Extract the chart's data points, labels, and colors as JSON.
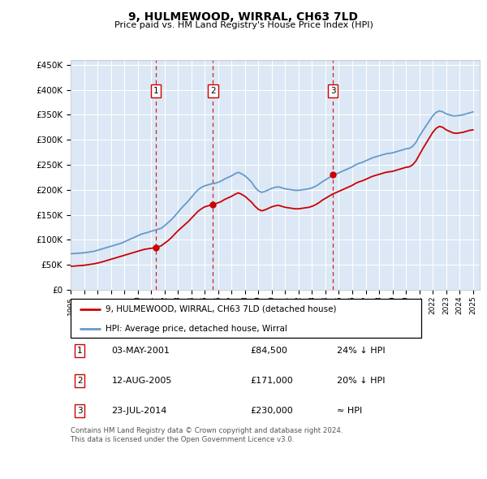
{
  "title": "9, HULMEWOOD, WIRRAL, CH63 7LD",
  "subtitle": "Price paid vs. HM Land Registry's House Price Index (HPI)",
  "footer": "Contains HM Land Registry data © Crown copyright and database right 2024.\nThis data is licensed under the Open Government Licence v3.0.",
  "legend_line1": "9, HULMEWOOD, WIRRAL, CH63 7LD (detached house)",
  "legend_line2": "HPI: Average price, detached house, Wirral",
  "table_rows": [
    {
      "num": "1",
      "date": "03-MAY-2001",
      "price": "£84,500",
      "hpi": "24% ↓ HPI"
    },
    {
      "num": "2",
      "date": "12-AUG-2005",
      "price": "£171,000",
      "hpi": "20% ↓ HPI"
    },
    {
      "num": "3",
      "date": "23-JUL-2014",
      "price": "£230,000",
      "hpi": "≈ HPI"
    }
  ],
  "sale_markers": [
    {
      "year": 2001.35,
      "value": 84500,
      "label": "1"
    },
    {
      "year": 2005.62,
      "value": 171000,
      "label": "2"
    },
    {
      "year": 2014.55,
      "value": 230000,
      "label": "3"
    }
  ],
  "red_color": "#cc0000",
  "blue_color": "#6699cc",
  "plot_bg": "#dce8f5",
  "ylim": [
    0,
    460000
  ],
  "yticks": [
    0,
    50000,
    100000,
    150000,
    200000,
    250000,
    300000,
    350000,
    400000,
    450000
  ],
  "ytick_labels": [
    "£0",
    "£50K",
    "£100K",
    "£150K",
    "£200K",
    "£250K",
    "£300K",
    "£350K",
    "£400K",
    "£450K"
  ],
  "hpi_data": {
    "years": [
      1995.0,
      1995.25,
      1995.5,
      1995.75,
      1996.0,
      1996.25,
      1996.5,
      1996.75,
      1997.0,
      1997.25,
      1997.5,
      1997.75,
      1998.0,
      1998.25,
      1998.5,
      1998.75,
      1999.0,
      1999.25,
      1999.5,
      1999.75,
      2000.0,
      2000.25,
      2000.5,
      2000.75,
      2001.0,
      2001.25,
      2001.5,
      2001.75,
      2002.0,
      2002.25,
      2002.5,
      2002.75,
      2003.0,
      2003.25,
      2003.5,
      2003.75,
      2004.0,
      2004.25,
      2004.5,
      2004.75,
      2005.0,
      2005.25,
      2005.5,
      2005.75,
      2006.0,
      2006.25,
      2006.5,
      2006.75,
      2007.0,
      2007.25,
      2007.5,
      2007.75,
      2008.0,
      2008.25,
      2008.5,
      2008.75,
      2009.0,
      2009.25,
      2009.5,
      2009.75,
      2010.0,
      2010.25,
      2010.5,
      2010.75,
      2011.0,
      2011.25,
      2011.5,
      2011.75,
      2012.0,
      2012.25,
      2012.5,
      2012.75,
      2013.0,
      2013.25,
      2013.5,
      2013.75,
      2014.0,
      2014.25,
      2014.5,
      2014.75,
      2015.0,
      2015.25,
      2015.5,
      2015.75,
      2016.0,
      2016.25,
      2016.5,
      2016.75,
      2017.0,
      2017.25,
      2017.5,
      2017.75,
      2018.0,
      2018.25,
      2018.5,
      2018.75,
      2019.0,
      2019.25,
      2019.5,
      2019.75,
      2020.0,
      2020.25,
      2020.5,
      2020.75,
      2021.0,
      2021.25,
      2021.5,
      2021.75,
      2022.0,
      2022.25,
      2022.5,
      2022.75,
      2023.0,
      2023.25,
      2023.5,
      2023.75,
      2024.0,
      2024.25,
      2024.5,
      2024.75,
      2025.0
    ],
    "values": [
      72000,
      72500,
      73000,
      73500,
      74000,
      75000,
      76000,
      77000,
      79000,
      81000,
      83000,
      85000,
      87000,
      89000,
      91000,
      93000,
      96000,
      99000,
      102000,
      105000,
      108000,
      111000,
      113000,
      115000,
      117000,
      119000,
      121000,
      123000,
      128000,
      134000,
      140000,
      147000,
      155000,
      163000,
      170000,
      177000,
      185000,
      193000,
      200000,
      205000,
      208000,
      210000,
      212000,
      213000,
      215000,
      218000,
      222000,
      225000,
      228000,
      232000,
      235000,
      232000,
      228000,
      222000,
      215000,
      205000,
      198000,
      195000,
      197000,
      200000,
      203000,
      205000,
      206000,
      204000,
      202000,
      201000,
      200000,
      199000,
      199000,
      200000,
      201000,
      202000,
      204000,
      207000,
      211000,
      216000,
      220000,
      224000,
      228000,
      231000,
      234000,
      237000,
      240000,
      243000,
      246000,
      250000,
      253000,
      255000,
      258000,
      261000,
      264000,
      266000,
      268000,
      270000,
      272000,
      273000,
      274000,
      276000,
      278000,
      280000,
      282000,
      283000,
      287000,
      295000,
      307000,
      318000,
      328000,
      338000,
      348000,
      355000,
      358000,
      356000,
      352000,
      350000,
      348000,
      348000,
      349000,
      350000,
      352000,
      354000,
      356000
    ]
  },
  "price_data": {
    "years": [
      1995.0,
      1995.25,
      1995.5,
      1995.75,
      1996.0,
      1996.25,
      1996.5,
      1996.75,
      1997.0,
      1997.25,
      1997.5,
      1997.75,
      1998.0,
      1998.25,
      1998.5,
      1998.75,
      1999.0,
      1999.25,
      1999.5,
      1999.75,
      2000.0,
      2000.25,
      2000.5,
      2000.75,
      2001.0,
      2001.25,
      2001.5,
      2001.75,
      2002.0,
      2002.25,
      2002.5,
      2002.75,
      2003.0,
      2003.25,
      2003.5,
      2003.75,
      2004.0,
      2004.25,
      2004.5,
      2004.75,
      2005.0,
      2005.25,
      2005.5,
      2005.75,
      2006.0,
      2006.25,
      2006.5,
      2006.75,
      2007.0,
      2007.25,
      2007.5,
      2007.75,
      2008.0,
      2008.25,
      2008.5,
      2008.75,
      2009.0,
      2009.25,
      2009.5,
      2009.75,
      2010.0,
      2010.25,
      2010.5,
      2010.75,
      2011.0,
      2011.25,
      2011.5,
      2011.75,
      2012.0,
      2012.25,
      2012.5,
      2012.75,
      2013.0,
      2013.25,
      2013.5,
      2013.75,
      2014.0,
      2014.25,
      2014.5,
      2014.75,
      2015.0,
      2015.25,
      2015.5,
      2015.75,
      2016.0,
      2016.25,
      2016.5,
      2016.75,
      2017.0,
      2017.25,
      2017.5,
      2017.75,
      2018.0,
      2018.25,
      2018.5,
      2018.75,
      2019.0,
      2019.25,
      2019.5,
      2019.75,
      2020.0,
      2020.25,
      2020.5,
      2020.75,
      2021.0,
      2021.25,
      2021.5,
      2021.75,
      2022.0,
      2022.25,
      2022.5,
      2022.75,
      2023.0,
      2023.25,
      2023.5,
      2023.75,
      2024.0,
      2024.25,
      2024.5,
      2024.75,
      2025.0
    ],
    "values": [
      47000,
      47500,
      48000,
      48500,
      49000,
      50000,
      51000,
      52000,
      53500,
      55000,
      57000,
      59000,
      61000,
      63000,
      65000,
      67000,
      69000,
      71000,
      73000,
      75000,
      77000,
      79000,
      81000,
      82000,
      83000,
      84000,
      86000,
      88000,
      93000,
      98000,
      104000,
      111000,
      118000,
      124000,
      130000,
      136000,
      143000,
      150000,
      157000,
      162000,
      166000,
      168000,
      170000,
      172000,
      174000,
      177000,
      181000,
      184000,
      187000,
      191000,
      194000,
      191000,
      187000,
      181000,
      175000,
      167000,
      161000,
      158000,
      160000,
      163000,
      166000,
      168000,
      169000,
      167000,
      165000,
      164000,
      163000,
      162000,
      162000,
      163000,
      164000,
      165000,
      167000,
      170000,
      174000,
      179000,
      183000,
      187000,
      191000,
      194000,
      197000,
      200000,
      203000,
      206000,
      209000,
      213000,
      216000,
      218000,
      221000,
      224000,
      227000,
      229000,
      231000,
      233000,
      235000,
      236000,
      237000,
      239000,
      241000,
      243000,
      245000,
      246000,
      250000,
      258000,
      270000,
      282000,
      293000,
      304000,
      315000,
      323000,
      327000,
      325000,
      320000,
      317000,
      314000,
      313000,
      314000,
      315000,
      317000,
      319000,
      320000
    ]
  }
}
